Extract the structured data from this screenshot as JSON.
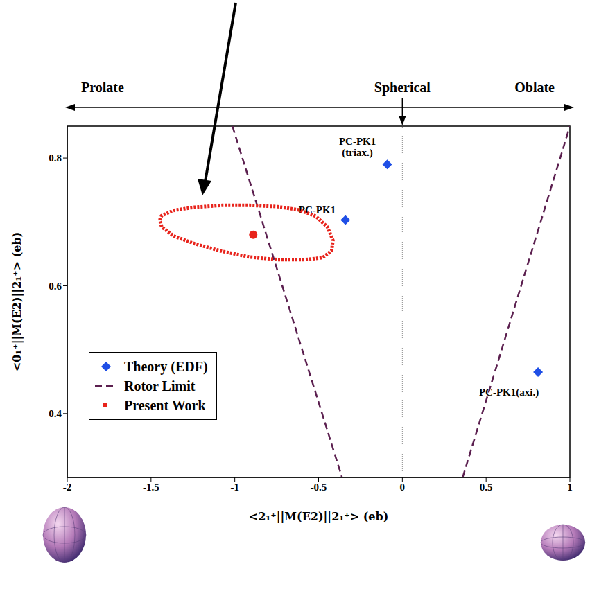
{
  "chart_data": {
    "type": "scatter",
    "x_label": "<2₁⁺||M(E2)||2₁⁺> (eb)",
    "y_label": "<0₁⁺||M(E2)||2₁⁺> (eb)",
    "xlim": [
      -2,
      1
    ],
    "ylim": [
      0.3,
      0.85
    ],
    "xticks": [
      -2,
      -1.5,
      -1,
      -0.5,
      0,
      0.5,
      1
    ],
    "yticks": [
      0.4,
      0.6,
      0.8
    ],
    "legend": "lower left",
    "shape_scale": {
      "left": "Prolate",
      "center": "Spherical",
      "right": "Oblate"
    },
    "reference_line": {
      "x": 0
    },
    "series": [
      {
        "name": "Theory (EDF)",
        "type": "scatter",
        "marker": "diamond",
        "color": "#1f4fe6",
        "x": [
          -0.09,
          -0.34,
          0.81
        ],
        "values": [
          0.79,
          0.703,
          0.465
        ],
        "labels": [
          "PC-PK1 (triax.)",
          "PC-PK1",
          "PC-PK1(axi.)"
        ]
      },
      {
        "name": "Rotor Limit",
        "type": "line",
        "line_style": "dashed",
        "color": "#5b1f4f",
        "x": [
          -1.014,
          -0.36,
          null,
          0.36,
          1.0
        ],
        "values": [
          0.85,
          0.3,
          null,
          0.3,
          0.85
        ]
      },
      {
        "name": "Present Work",
        "type": "scatter",
        "marker": "circle",
        "color": "#e8231b",
        "x": [
          -0.89
        ],
        "values": [
          0.68
        ],
        "contour": {
          "line_style": "dotted",
          "x": [
            -1.448,
            -1.436,
            -1.365,
            -1.241,
            -1.076,
            -0.91,
            -0.745,
            -0.621,
            -0.517,
            -0.447,
            -0.414,
            -0.422,
            -0.476,
            -0.579,
            -0.745,
            -0.91,
            -1.076,
            -1.241,
            -1.365,
            -1.436
          ],
          "values": [
            0.703,
            0.71,
            0.718,
            0.723,
            0.726,
            0.726,
            0.724,
            0.719,
            0.709,
            0.692,
            0.671,
            0.655,
            0.644,
            0.641,
            0.641,
            0.645,
            0.654,
            0.666,
            0.678,
            0.692
          ]
        }
      }
    ]
  }
}
